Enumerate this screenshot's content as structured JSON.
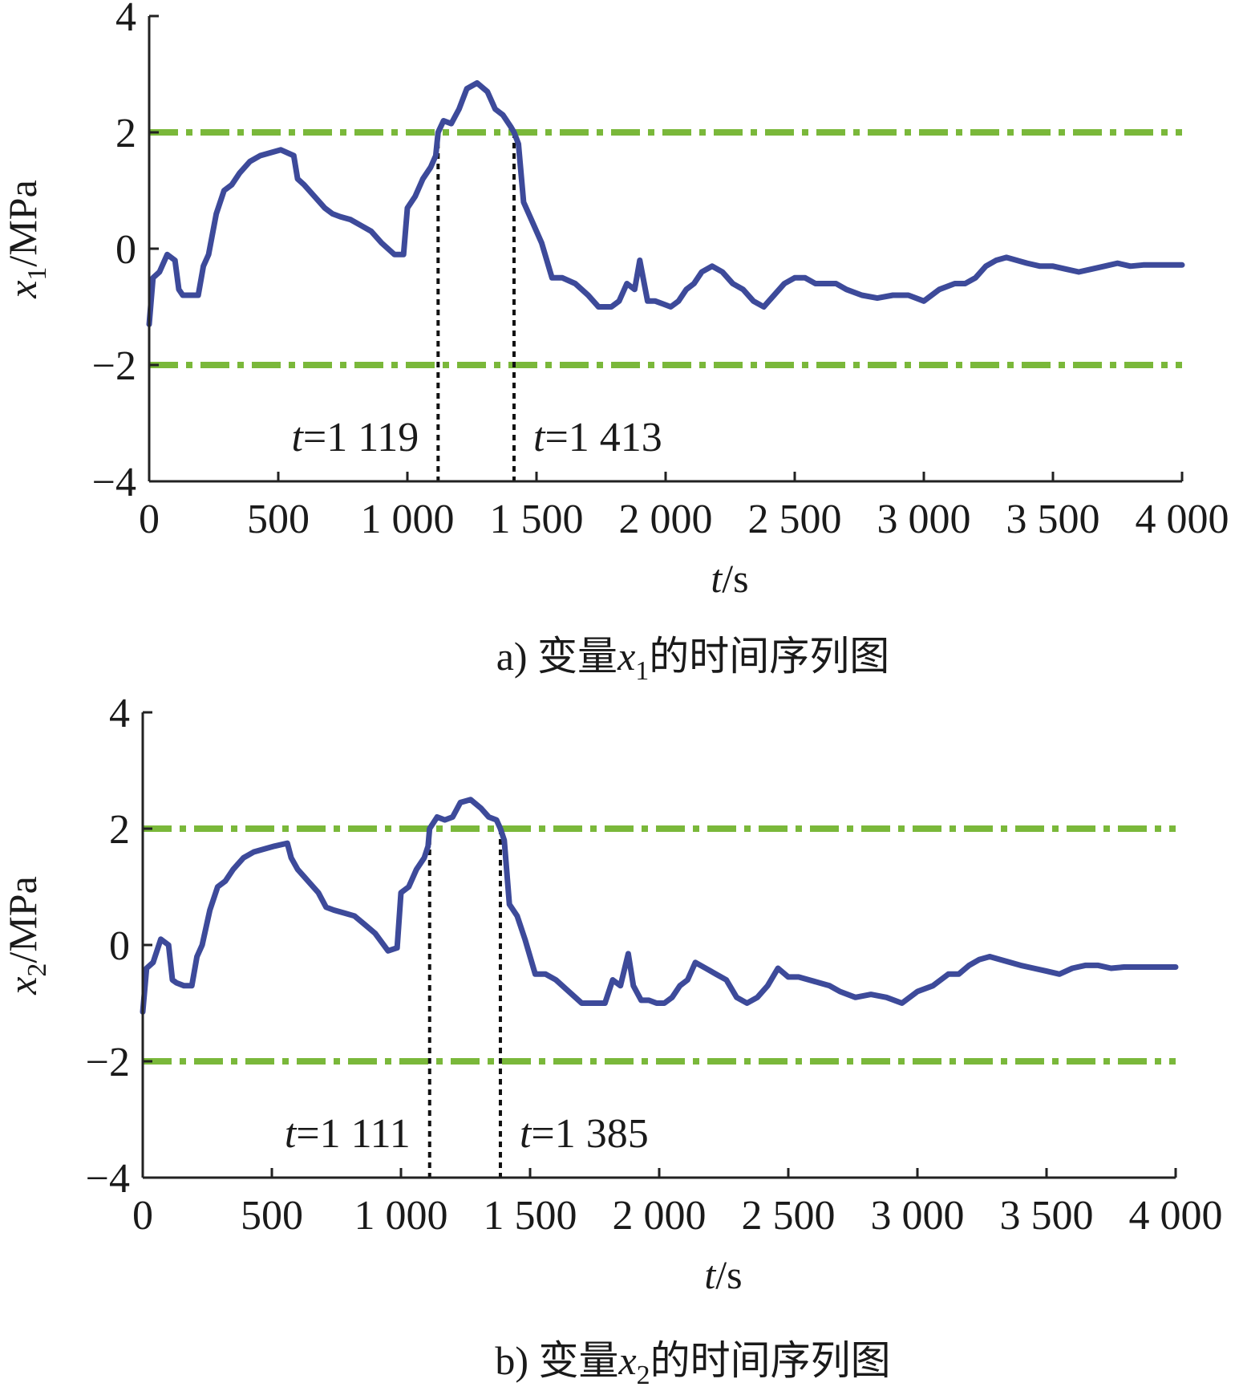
{
  "colors": {
    "series": "#3d4a9a",
    "threshold": "#7ab83a",
    "marker": "#111111",
    "axis": "#222222"
  },
  "chart_data": [
    {
      "type": "line",
      "panel": "a",
      "caption_prefix": "a) 变量",
      "caption_var": "x",
      "caption_sub": "1",
      "caption_suffix": "的时间序列图",
      "ylabel_var": "x",
      "ylabel_sub": "1",
      "ylabel_unit": "/MPa",
      "xlabel_var": "t",
      "xlabel_unit": "/s",
      "xlim": [
        0,
        4000
      ],
      "ylim": [
        -4,
        4
      ],
      "xticks": [
        0,
        500,
        1000,
        1500,
        2000,
        2500,
        3000,
        3500,
        4000
      ],
      "xtick_labels": [
        "0",
        "500",
        "1 000",
        "1 500",
        "2 000",
        "2 500",
        "3 000",
        "3 500",
        "4 000"
      ],
      "yticks": [
        -4,
        -2,
        0,
        2,
        4
      ],
      "ytick_labels": [
        "−4",
        "−2",
        "0",
        "2",
        "4"
      ],
      "grid": false,
      "thresholds": [
        2,
        -2
      ],
      "markers": [
        {
          "t": 1119,
          "label_var": "t",
          "label_value": "=1 119",
          "label_side": "left"
        },
        {
          "t": 1413,
          "label_var": "t",
          "label_value": "=1 413",
          "label_side": "right"
        }
      ],
      "series": [
        {
          "x": [
            0,
            15,
            40,
            70,
            100,
            115,
            130,
            160,
            190,
            210,
            230,
            260,
            290,
            320,
            350,
            390,
            430,
            470,
            510,
            560,
            575,
            600,
            640,
            680,
            710,
            740,
            780,
            820,
            860,
            900,
            950,
            985,
            1000,
            1030,
            1060,
            1090,
            1110,
            1119,
            1140,
            1170,
            1200,
            1230,
            1270,
            1310,
            1340,
            1370,
            1400,
            1413,
            1430,
            1450,
            1480,
            1520,
            1560,
            1600,
            1650,
            1700,
            1740,
            1790,
            1820,
            1850,
            1880,
            1900,
            1930,
            1960,
            1990,
            2020,
            2050,
            2080,
            2110,
            2140,
            2180,
            2220,
            2260,
            2300,
            2340,
            2380,
            2420,
            2460,
            2500,
            2540,
            2580,
            2620,
            2660,
            2700,
            2760,
            2820,
            2880,
            2940,
            3000,
            3060,
            3120,
            3160,
            3200,
            3240,
            3280,
            3320,
            3360,
            3400,
            3450,
            3500,
            3550,
            3600,
            3650,
            3700,
            3750,
            3800,
            3850,
            3900,
            3950,
            4000
          ],
          "y": [
            -1.3,
            -0.5,
            -0.4,
            -0.1,
            -0.2,
            -0.7,
            -0.8,
            -0.8,
            -0.8,
            -0.3,
            -0.1,
            0.6,
            1.0,
            1.1,
            1.3,
            1.5,
            1.6,
            1.65,
            1.7,
            1.6,
            1.2,
            1.1,
            0.9,
            0.7,
            0.6,
            0.55,
            0.5,
            0.4,
            0.3,
            0.1,
            -0.1,
            -0.1,
            0.7,
            0.9,
            1.2,
            1.4,
            1.6,
            2.0,
            2.2,
            2.15,
            2.4,
            2.75,
            2.85,
            2.7,
            2.4,
            2.3,
            2.1,
            2.0,
            1.8,
            0.8,
            0.5,
            0.1,
            -0.5,
            -0.5,
            -0.6,
            -0.8,
            -1.0,
            -1.0,
            -0.9,
            -0.6,
            -0.7,
            -0.2,
            -0.9,
            -0.9,
            -0.95,
            -1.0,
            -0.9,
            -0.7,
            -0.6,
            -0.4,
            -0.3,
            -0.4,
            -0.6,
            -0.7,
            -0.9,
            -1.0,
            -0.8,
            -0.6,
            -0.5,
            -0.5,
            -0.6,
            -0.6,
            -0.6,
            -0.7,
            -0.8,
            -0.85,
            -0.8,
            -0.8,
            -0.9,
            -0.7,
            -0.6,
            -0.6,
            -0.5,
            -0.3,
            -0.2,
            -0.15,
            -0.2,
            -0.25,
            -0.3,
            -0.3,
            -0.35,
            -0.4,
            -0.35,
            -0.3,
            -0.25,
            -0.3,
            -0.28,
            -0.28,
            -0.28,
            -0.28
          ]
        }
      ]
    },
    {
      "type": "line",
      "panel": "b",
      "caption_prefix": "b) 变量",
      "caption_var": "x",
      "caption_sub": "2",
      "caption_suffix": "的时间序列图",
      "ylabel_var": "x",
      "ylabel_sub": "2",
      "ylabel_unit": "/MPa",
      "xlabel_var": "t",
      "xlabel_unit": "/s",
      "xlim": [
        0,
        4000
      ],
      "ylim": [
        -4,
        4
      ],
      "xticks": [
        0,
        500,
        1000,
        1500,
        2000,
        2500,
        3000,
        3500,
        4000
      ],
      "xtick_labels": [
        "0",
        "500",
        "1 000",
        "1 500",
        "2 000",
        "2 500",
        "3 000",
        "3 500",
        "4 000"
      ],
      "yticks": [
        -4,
        -2,
        0,
        2,
        4
      ],
      "ytick_labels": [
        "−4",
        "−2",
        "0",
        "2",
        "4"
      ],
      "grid": false,
      "thresholds": [
        2,
        -2
      ],
      "markers": [
        {
          "t": 1111,
          "label_var": "t",
          "label_value": "=1 111",
          "label_side": "left"
        },
        {
          "t": 1385,
          "label_var": "t",
          "label_value": "=1 385",
          "label_side": "right"
        }
      ],
      "series": [
        {
          "x": [
            0,
            15,
            40,
            70,
            100,
            115,
            130,
            160,
            190,
            210,
            230,
            260,
            290,
            320,
            350,
            390,
            430,
            470,
            510,
            560,
            575,
            600,
            640,
            680,
            710,
            740,
            780,
            820,
            860,
            900,
            950,
            985,
            1000,
            1030,
            1060,
            1090,
            1105,
            1111,
            1140,
            1170,
            1200,
            1230,
            1270,
            1310,
            1340,
            1370,
            1385,
            1400,
            1420,
            1450,
            1480,
            1520,
            1560,
            1600,
            1650,
            1700,
            1740,
            1790,
            1820,
            1850,
            1880,
            1900,
            1930,
            1960,
            1990,
            2020,
            2050,
            2080,
            2110,
            2140,
            2180,
            2220,
            2260,
            2300,
            2340,
            2380,
            2420,
            2460,
            2500,
            2540,
            2580,
            2620,
            2660,
            2700,
            2760,
            2820,
            2880,
            2940,
            3000,
            3060,
            3120,
            3160,
            3200,
            3240,
            3280,
            3320,
            3360,
            3400,
            3450,
            3500,
            3550,
            3600,
            3650,
            3700,
            3750,
            3800,
            3850,
            3900,
            3950,
            4000
          ],
          "y": [
            -1.15,
            -0.4,
            -0.3,
            0.1,
            0.0,
            -0.6,
            -0.65,
            -0.7,
            -0.7,
            -0.2,
            0.0,
            0.6,
            1.0,
            1.1,
            1.3,
            1.5,
            1.6,
            1.65,
            1.7,
            1.75,
            1.5,
            1.3,
            1.1,
            0.9,
            0.65,
            0.6,
            0.55,
            0.5,
            0.35,
            0.2,
            -0.1,
            -0.05,
            0.9,
            1.0,
            1.3,
            1.5,
            1.7,
            2.0,
            2.2,
            2.15,
            2.2,
            2.45,
            2.5,
            2.35,
            2.2,
            2.15,
            2.0,
            1.8,
            0.7,
            0.5,
            0.1,
            -0.5,
            -0.5,
            -0.6,
            -0.8,
            -1.0,
            -1.0,
            -1.0,
            -0.6,
            -0.7,
            -0.15,
            -0.7,
            -0.95,
            -0.95,
            -1.0,
            -1.0,
            -0.9,
            -0.7,
            -0.6,
            -0.3,
            -0.4,
            -0.5,
            -0.6,
            -0.9,
            -1.0,
            -0.9,
            -0.7,
            -0.4,
            -0.55,
            -0.55,
            -0.6,
            -0.65,
            -0.7,
            -0.8,
            -0.9,
            -0.85,
            -0.9,
            -1.0,
            -0.8,
            -0.7,
            -0.5,
            -0.5,
            -0.35,
            -0.25,
            -0.2,
            -0.25,
            -0.3,
            -0.35,
            -0.4,
            -0.45,
            -0.5,
            -0.4,
            -0.35,
            -0.35,
            -0.4,
            -0.38,
            -0.38,
            -0.38,
            -0.38,
            -0.38
          ]
        }
      ]
    }
  ]
}
